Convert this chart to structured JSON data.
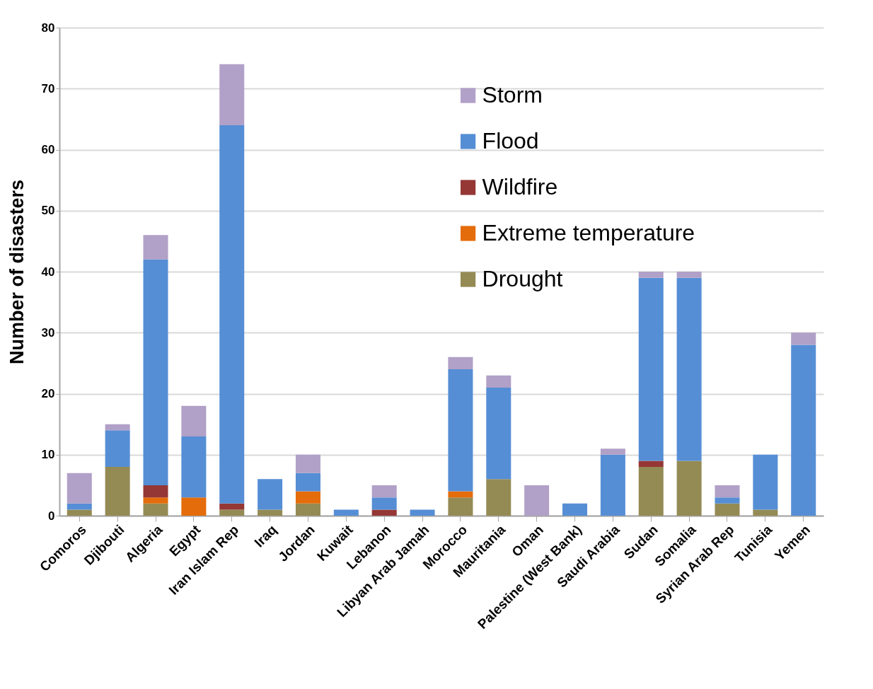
{
  "chart_data": {
    "type": "bar",
    "stacked": true,
    "ylabel": "Number of disasters",
    "categories": [
      "Comoros",
      "Djibouti",
      "Algeria",
      "Egypt",
      "Iran Islam Rep",
      "Iraq",
      "Jordan",
      "Kuwait",
      "Lebanon",
      "Libyan Arab Jamah",
      "Morocco",
      "Mauritania",
      "Oman",
      "Palestine (West Bank)",
      "Saudi Arabia",
      "Sudan",
      "Somalia",
      "Syrian Arab Rep",
      "Tunisia",
      "Yemen"
    ],
    "series": [
      {
        "name": "Drought",
        "color": "#948a54",
        "values": [
          1,
          8,
          2,
          0,
          1,
          1,
          2,
          0,
          0,
          0,
          3,
          6,
          0,
          0,
          0,
          8,
          9,
          2,
          1,
          0
        ]
      },
      {
        "name": "Extreme temperature",
        "color": "#e46c0a",
        "values": [
          0,
          0,
          1,
          3,
          0,
          0,
          2,
          0,
          0,
          0,
          1,
          0,
          0,
          0,
          0,
          0,
          0,
          0,
          0,
          0
        ]
      },
      {
        "name": "Wildfire",
        "color": "#953735",
        "values": [
          0,
          0,
          2,
          0,
          1,
          0,
          0,
          0,
          1,
          0,
          0,
          0,
          0,
          0,
          0,
          1,
          0,
          0,
          0,
          0
        ]
      },
      {
        "name": "Flood",
        "color": "#558ed5",
        "values": [
          1,
          6,
          37,
          10,
          62,
          5,
          3,
          1,
          2,
          1,
          20,
          15,
          0,
          2,
          10,
          30,
          30,
          1,
          9,
          28
        ]
      },
      {
        "name": "Storm",
        "color": "#b1a0c7",
        "values": [
          5,
          1,
          4,
          5,
          10,
          0,
          3,
          0,
          2,
          0,
          2,
          2,
          5,
          0,
          1,
          1,
          1,
          2,
          0,
          2
        ]
      }
    ],
    "ylim": [
      0,
      80
    ],
    "yticks": [
      0,
      10,
      20,
      30,
      40,
      50,
      60,
      70,
      80
    ],
    "grid": "y",
    "legend": "top right"
  }
}
